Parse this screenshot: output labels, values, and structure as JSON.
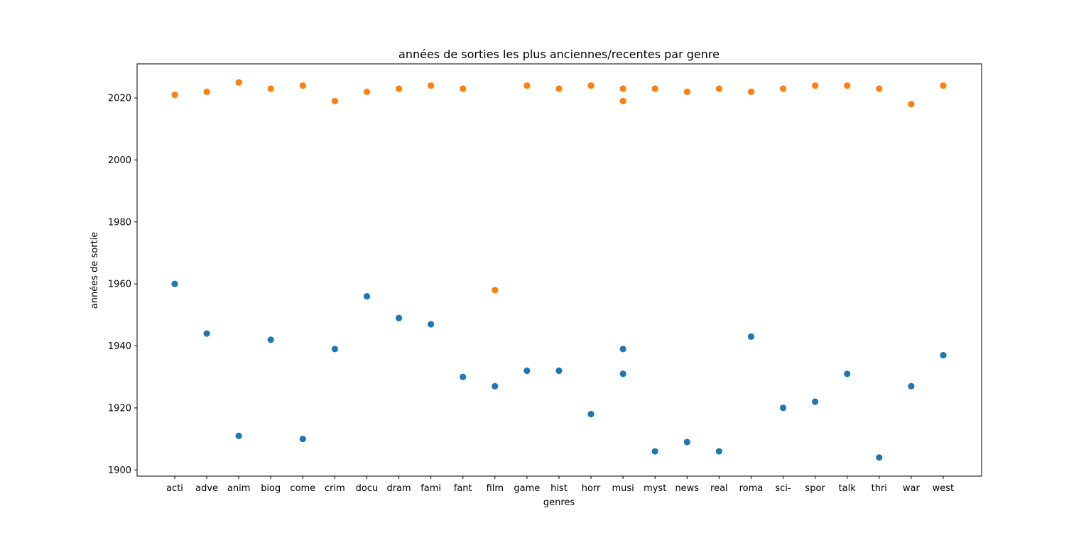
{
  "chart_data": {
    "type": "scatter",
    "title": "années de sorties les plus anciennes/recentes par genre",
    "xlabel": "genres",
    "ylabel": "années de sortie",
    "categories": [
      "acti",
      "adve",
      "anim",
      "biog",
      "come",
      "crim",
      "docu",
      "dram",
      "fami",
      "fant",
      "film",
      "game",
      "hist",
      "horr",
      "musi",
      "myst",
      "news",
      "real",
      "roma",
      "sci-",
      "spor",
      "talk",
      "thri",
      "war",
      "west"
    ],
    "ylim": [
      1898,
      2031
    ],
    "yticks": [
      1900,
      1920,
      1940,
      1960,
      1980,
      2000,
      2020
    ],
    "grid": false,
    "legend": "none",
    "series": [
      {
        "color": "#1f77b4",
        "points": [
          [
            "acti",
            1960
          ],
          [
            "adve",
            1944
          ],
          [
            "anim",
            1911
          ],
          [
            "biog",
            1942
          ],
          [
            "come",
            1910
          ],
          [
            "crim",
            1939
          ],
          [
            "docu",
            1956
          ],
          [
            "dram",
            1949
          ],
          [
            "fami",
            1947
          ],
          [
            "fant",
            1930
          ],
          [
            "film",
            1927
          ],
          [
            "game",
            1932
          ],
          [
            "hist",
            1932
          ],
          [
            "horr",
            1918
          ],
          [
            "musi",
            1939
          ],
          [
            "musi",
            1931
          ],
          [
            "myst",
            1906
          ],
          [
            "news",
            1909
          ],
          [
            "real",
            1906
          ],
          [
            "roma",
            1943
          ],
          [
            "sci-",
            1920
          ],
          [
            "spor",
            1922
          ],
          [
            "talk",
            1931
          ],
          [
            "thri",
            1904
          ],
          [
            "war",
            1927
          ],
          [
            "west",
            1937
          ]
        ]
      },
      {
        "color": "#ff7f0e",
        "points": [
          [
            "acti",
            2021
          ],
          [
            "adve",
            2022
          ],
          [
            "anim",
            2025
          ],
          [
            "biog",
            2023
          ],
          [
            "come",
            2024
          ],
          [
            "crim",
            2019
          ],
          [
            "docu",
            2022
          ],
          [
            "dram",
            2023
          ],
          [
            "fami",
            2024
          ],
          [
            "fant",
            2023
          ],
          [
            "film",
            1958
          ],
          [
            "game",
            2024
          ],
          [
            "hist",
            2023
          ],
          [
            "horr",
            2024
          ],
          [
            "musi",
            2023
          ],
          [
            "musi",
            2019
          ],
          [
            "myst",
            2023
          ],
          [
            "news",
            2022
          ],
          [
            "real",
            2023
          ],
          [
            "roma",
            2022
          ],
          [
            "sci-",
            2023
          ],
          [
            "spor",
            2024
          ],
          [
            "talk",
            2024
          ],
          [
            "thri",
            2023
          ],
          [
            "war",
            2018
          ],
          [
            "west",
            2024
          ]
        ]
      }
    ]
  }
}
